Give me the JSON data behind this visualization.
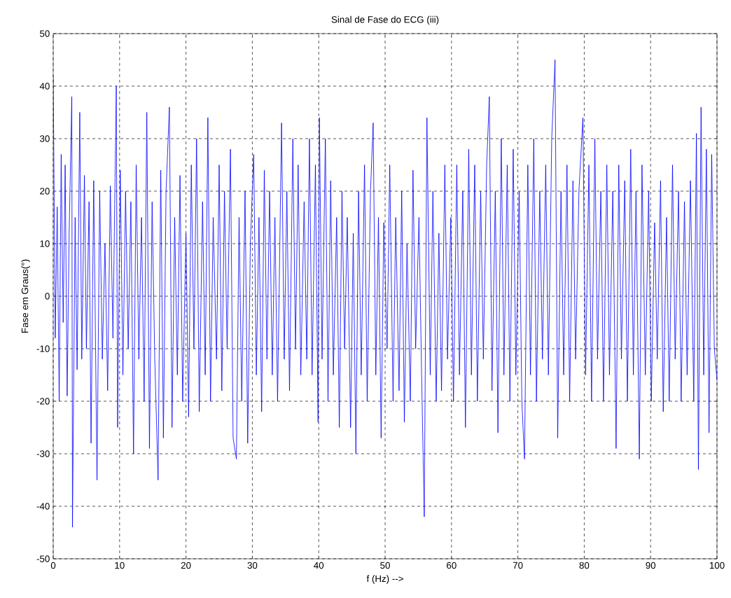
{
  "chart_data": {
    "type": "line",
    "title": "Sinal de Fase do ECG (iii)",
    "xlabel": "f (Hz) -->",
    "ylabel": "Fase em Graus(°)",
    "x": [
      0,
      0.3,
      0.6,
      0.9,
      1.2,
      1.5,
      1.8,
      2.1,
      2.4,
      2.8,
      2.9,
      3.3,
      3.6,
      4.0,
      4.3,
      4.7,
      5.0,
      5.4,
      5.7,
      6.1,
      6.4,
      6.6,
      7.0,
      7.4,
      7.8,
      8.2,
      8.6,
      9.0,
      9.5,
      9.7,
      10.1,
      10.5,
      10.9,
      11.3,
      11.7,
      12.1,
      12.5,
      12.9,
      13.3,
      13.7,
      14.1,
      14.5,
      14.9,
      15.3,
      15.8,
      16.2,
      16.6,
      17.0,
      17.5,
      17.9,
      18.3,
      18.7,
      19.1,
      19.5,
      20.0,
      20.4,
      20.8,
      21.2,
      21.6,
      22.0,
      22.5,
      22.9,
      23.3,
      23.7,
      24.1,
      24.6,
      25.0,
      25.4,
      25.8,
      26.2,
      26.7,
      27.1,
      27.6,
      28.0,
      28.4,
      28.9,
      29.3,
      29.7,
      30.2,
      30.6,
      31.0,
      31.4,
      31.8,
      32.2,
      32.6,
      33.0,
      33.4,
      33.8,
      34.4,
      34.8,
      35.2,
      35.6,
      36.1,
      36.5,
      36.9,
      37.3,
      37.8,
      38.2,
      38.6,
      39.0,
      39.5,
      39.9,
      40.1,
      40.5,
      41.0,
      41.4,
      41.8,
      42.2,
      42.7,
      43.1,
      43.5,
      43.9,
      44.3,
      44.8,
      45.2,
      45.6,
      46.0,
      46.4,
      46.9,
      47.3,
      47.8,
      48.2,
      48.6,
      49.0,
      49.4,
      49.8,
      50.3,
      50.7,
      51.2,
      51.6,
      52.1,
      52.5,
      52.9,
      53.3,
      53.8,
      54.2,
      54.6,
      55.1,
      55.5,
      55.9,
      56.3,
      56.8,
      57.2,
      57.7,
      58.1,
      58.5,
      59.0,
      59.4,
      59.9,
      60.3,
      60.8,
      61.2,
      61.7,
      62.1,
      62.6,
      63.0,
      63.5,
      63.9,
      64.4,
      64.8,
      65.3,
      65.7,
      66.1,
      66.6,
      67.0,
      67.5,
      67.9,
      68.4,
      68.8,
      69.3,
      69.7,
      70.2,
      70.6,
      71.0,
      71.5,
      71.9,
      72.4,
      72.8,
      73.3,
      73.7,
      74.2,
      74.6,
      75.1,
      75.6,
      76.0,
      76.5,
      76.9,
      77.4,
      77.8,
      78.3,
      78.7,
      79.2,
      79.8,
      80.2,
      80.7,
      81.1,
      81.6,
      82.0,
      82.5,
      82.9,
      83.4,
      83.8,
      84.3,
      84.8,
      85.2,
      85.6,
      86.1,
      86.5,
      87.0,
      87.4,
      87.8,
      88.3,
      88.7,
      89.2,
      89.7,
      90.1,
      90.6,
      91.0,
      91.5,
      91.9,
      92.4,
      92.8,
      93.3,
      93.7,
      94.2,
      94.6,
      95.1,
      95.5,
      96.0,
      96.5,
      96.9,
      97.2,
      97.6,
      98.0,
      98.4,
      98.8,
      99.2,
      99.6,
      100
    ],
    "values": [
      42,
      -8,
      17,
      -20,
      27,
      -5,
      25,
      -19,
      12,
      38,
      -44,
      15,
      -14,
      35,
      -12,
      23,
      -10,
      18,
      -28,
      22,
      -12,
      -35,
      20,
      -12,
      10,
      -18,
      21,
      -8,
      40,
      -25,
      24,
      -15,
      20,
      -10,
      18,
      -30,
      25,
      -12,
      15,
      -20,
      35,
      -29,
      18,
      -12,
      -35,
      24,
      -27,
      20,
      36,
      -25,
      15,
      -15,
      23,
      -20,
      12,
      -23,
      25,
      -10,
      30,
      -22,
      18,
      -15,
      34,
      -20,
      15,
      -12,
      25,
      -18,
      20,
      -10,
      28,
      -27,
      -31,
      15,
      -20,
      20,
      -28,
      10,
      27,
      -15,
      15,
      -22,
      24,
      -12,
      20,
      -15,
      15,
      -20,
      33,
      -12,
      20,
      -18,
      30,
      -10,
      25,
      -15,
      18,
      -12,
      30,
      -15,
      25,
      -24,
      34,
      -12,
      30,
      -20,
      22,
      -15,
      15,
      -25,
      20,
      -10,
      15,
      -25,
      12,
      -30,
      20,
      -15,
      25,
      -20,
      20,
      33,
      -15,
      15,
      -27,
      14,
      -10,
      25,
      -20,
      15,
      -18,
      20,
      -24,
      10,
      -20,
      24,
      -10,
      15,
      -15,
      -42,
      34,
      -15,
      20,
      -20,
      12,
      -18,
      25,
      -12,
      15,
      -20,
      25,
      -15,
      20,
      -25,
      28,
      -15,
      25,
      -20,
      20,
      -12,
      25,
      38,
      -18,
      20,
      -26,
      30,
      -15,
      25,
      -20,
      28,
      -15,
      20,
      -20,
      -31,
      25,
      -15,
      30,
      -20,
      20,
      -12,
      25,
      -15,
      30,
      45,
      -27,
      20,
      -15,
      25,
      -20,
      22,
      -12,
      20,
      34,
      -15,
      25,
      -20,
      30,
      -12,
      20,
      -20,
      25,
      -15,
      20,
      -29,
      25,
      -12,
      22,
      -20,
      28,
      -15,
      20,
      -31,
      25,
      -15,
      20,
      -20,
      14,
      -12,
      22,
      -22,
      15,
      -20,
      25,
      -12,
      20,
      -20,
      18,
      -15,
      22,
      -20,
      31,
      -33,
      36,
      -15,
      28,
      -26,
      27,
      -10,
      -16
    ],
    "color": "#0000ff",
    "xlim": [
      0,
      100
    ],
    "ylim": [
      -50,
      50
    ],
    "xticks": [
      0,
      10,
      20,
      30,
      40,
      50,
      60,
      70,
      80,
      90,
      100
    ],
    "yticks": [
      -50,
      -40,
      -30,
      -20,
      -10,
      0,
      10,
      20,
      30,
      40,
      50
    ],
    "grid": true
  }
}
